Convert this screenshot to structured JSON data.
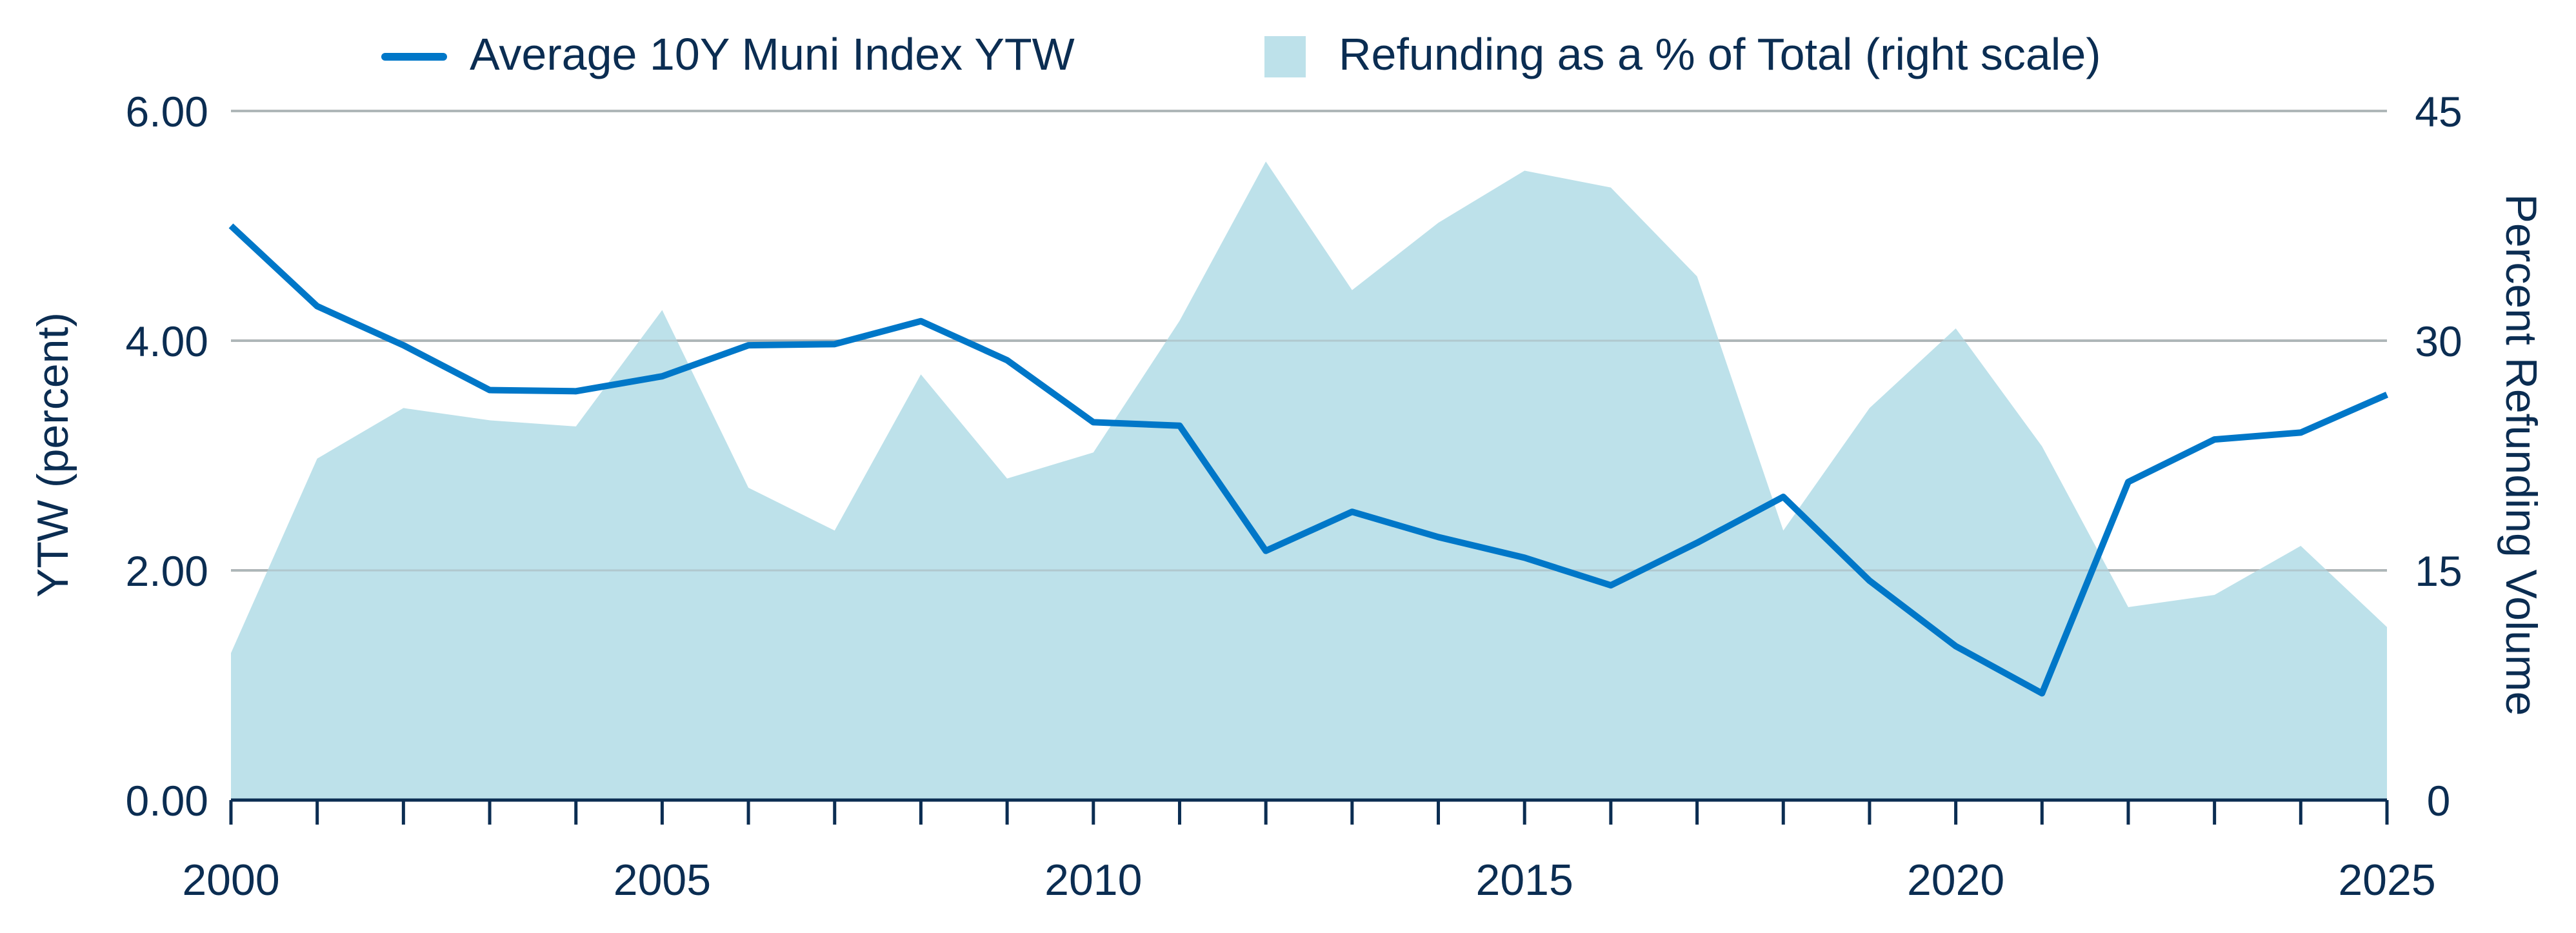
{
  "chart_data": {
    "type": "line+area",
    "legend": {
      "position": "top",
      "line_label": "Average 10Y Muni Index YTW",
      "area_label": "Refunding as a % of Total (right scale)"
    },
    "ylabel": "YTW (percent)",
    "y2label": "Percent Refunding Volume",
    "xlim": [
      2000,
      2025
    ],
    "ylim": [
      0,
      6
    ],
    "y2lim": [
      0,
      45
    ],
    "x_ticks": [
      "2000",
      "2005",
      "2010",
      "2015",
      "2020",
      "2025"
    ],
    "y_ticks": [
      "0.00",
      "2.00",
      "4.00",
      "6.00"
    ],
    "y2_ticks": [
      "0",
      "15",
      "30",
      "45"
    ],
    "grid": "horizontal",
    "x": [
      2000,
      2001,
      2002,
      2003,
      2004,
      2005,
      2006,
      2007,
      2008,
      2009,
      2010,
      2011,
      2012,
      2013,
      2014,
      2015,
      2016,
      2017,
      2018,
      2019,
      2020,
      2021,
      2022,
      2023,
      2024,
      2025
    ],
    "series": [
      {
        "name": "Average 10Y Muni Index YTW",
        "type": "line",
        "axis": "left",
        "color": "#0077c8",
        "values": [
          5.0,
          4.3,
          3.96,
          3.57,
          3.56,
          3.69,
          3.96,
          3.97,
          4.17,
          3.83,
          3.29,
          3.26,
          2.17,
          2.51,
          2.29,
          2.11,
          1.87,
          2.24,
          2.64,
          1.91,
          1.34,
          0.93,
          2.77,
          3.14,
          3.2,
          3.53
        ]
      },
      {
        "name": "Refunding as a % of Total (right scale)",
        "type": "area",
        "axis": "right",
        "color": "#bde1ea",
        "values": [
          9.6,
          22.3,
          25.6,
          24.8,
          24.4,
          32.0,
          20.4,
          17.6,
          27.8,
          21.0,
          22.7,
          31.3,
          41.7,
          33.3,
          37.7,
          41.1,
          40.0,
          34.2,
          17.6,
          25.6,
          30.8,
          23.1,
          12.6,
          13.4,
          16.6,
          11.3
        ]
      }
    ]
  }
}
